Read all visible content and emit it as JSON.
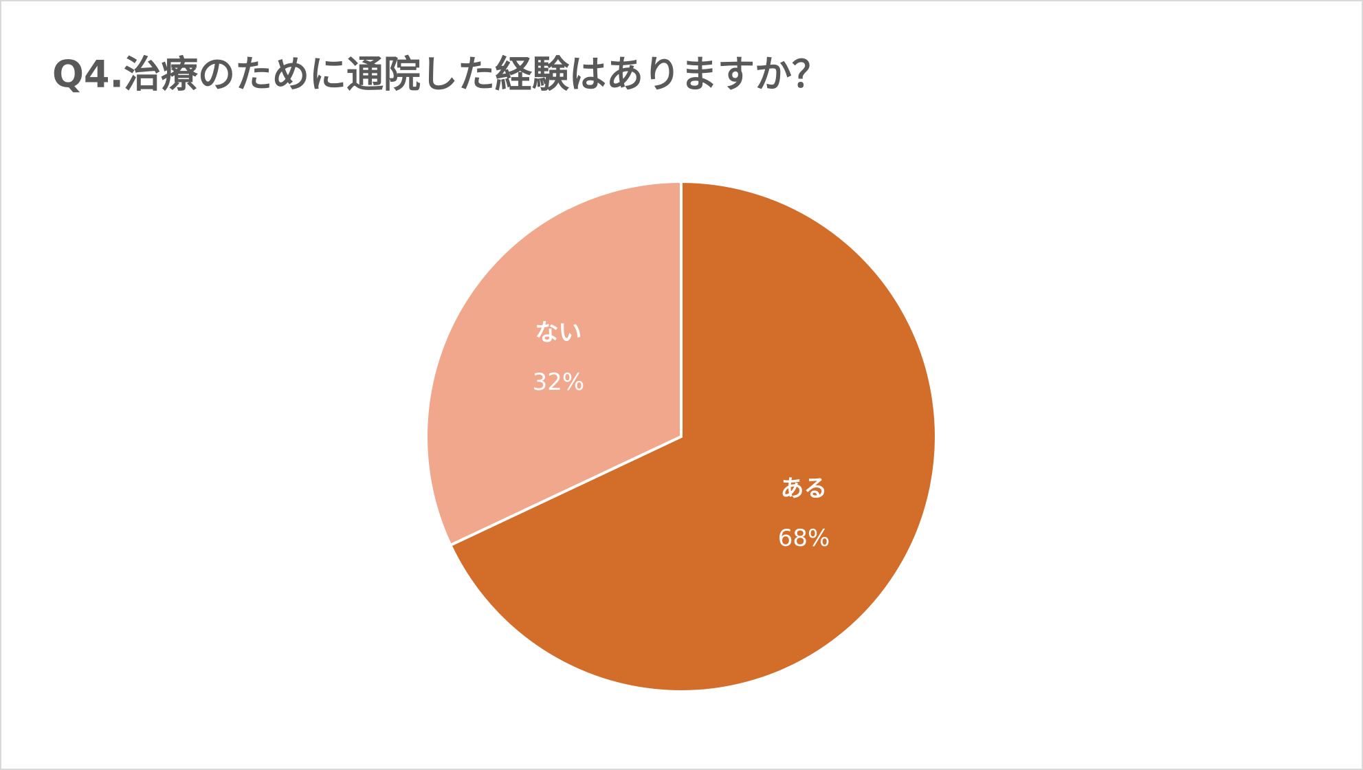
{
  "chart_data": {
    "type": "pie",
    "title": "Q4.治療のために通院した経験はありますか？",
    "categories": [
      "ある",
      "ない"
    ],
    "values": [
      68,
      32
    ],
    "value_labels": [
      "68%",
      "32%"
    ],
    "colors": [
      "#D26D2A",
      "#F0A78B"
    ]
  }
}
